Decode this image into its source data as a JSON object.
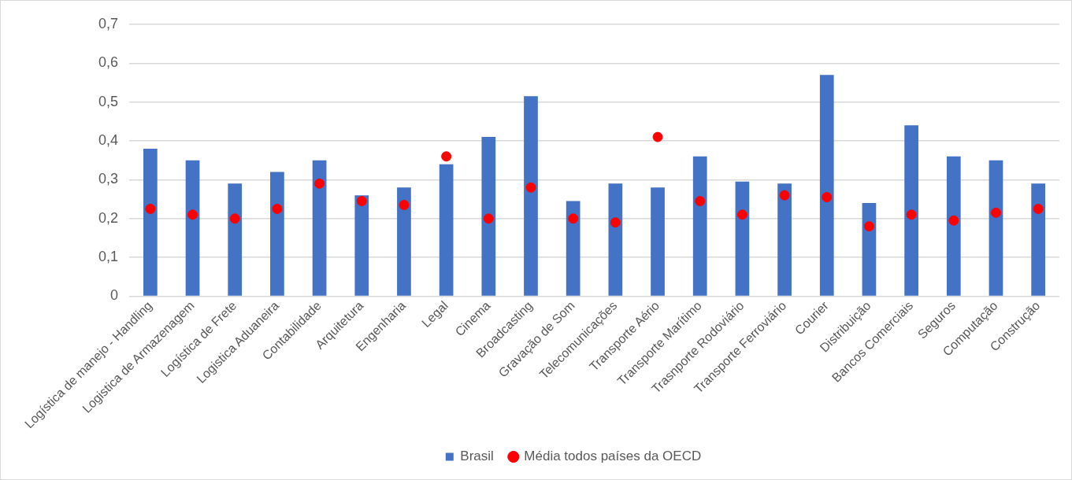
{
  "chart_data": {
    "type": "bar",
    "categories": [
      "Logística de manejo - Handling",
      "Logistica de Armazenagem",
      "Logística de Frete",
      "Logistica Aduaneira",
      "Contabilidade",
      "Arquitetura",
      "Engenharia",
      "Legal",
      "Cinema",
      "Broadcasting",
      "Gravação de Som",
      "Telecomunicações",
      "Transporte Aério",
      "Transporte Marítimo",
      "Trasnporte Rodoviário",
      "Transporte Ferroviário",
      "Courier",
      "Distribuição",
      "Bancos Comerciais",
      "Seguros",
      "Computação",
      "Construção"
    ],
    "series": [
      {
        "name": "Brasil",
        "type": "bar",
        "color": "#4472c4",
        "values": [
          0.38,
          0.35,
          0.29,
          0.32,
          0.35,
          0.26,
          0.28,
          0.34,
          0.41,
          0.515,
          0.245,
          0.29,
          0.28,
          0.36,
          0.295,
          0.29,
          0.57,
          0.24,
          0.44,
          0.36,
          0.35,
          0.29
        ]
      },
      {
        "name": "Média todos países da OECD",
        "type": "scatter",
        "marker": "circle",
        "color": "#ff0000",
        "x": [
          "Logística de manejo - Handling",
          "Logistica de Armazenagem",
          "Logística de Frete",
          "Logistica Aduaneira",
          "Contabilidade",
          "Arquitetura",
          "Engenharia",
          "Legal",
          "Cinema",
          "Broadcasting",
          "Gravação de Som",
          "Telecomunicações",
          "Transporte Aério",
          "Transporte Marítimo",
          "Trasnporte Rodoviário",
          "Transporte Ferroviário",
          "Courier",
          "Distribuição",
          "Bancos Comerciais",
          "Seguros",
          "Computação",
          "Construção"
        ],
        "values": [
          0.225,
          0.21,
          0.2,
          0.225,
          0.29,
          0.245,
          0.235,
          0.36,
          0.2,
          0.28,
          0.2,
          0.19,
          0.41,
          0.245,
          0.21,
          0.26,
          0.255,
          0.18,
          0.21,
          0.195,
          0.215,
          0.225
        ]
      }
    ],
    "ylim": [
      0,
      0.7
    ],
    "yticks": [
      {
        "value": 0,
        "label": "0"
      },
      {
        "value": 0.1,
        "label": "0,1"
      },
      {
        "value": 0.2,
        "label": "0,2"
      },
      {
        "value": 0.3,
        "label": "0,3"
      },
      {
        "value": 0.4,
        "label": "0,4"
      },
      {
        "value": 0.5,
        "label": "0,5"
      },
      {
        "value": 0.6,
        "label": "0,6"
      },
      {
        "value": 0.7,
        "label": "0,7"
      }
    ],
    "grid": "y",
    "legend": "bottom"
  }
}
